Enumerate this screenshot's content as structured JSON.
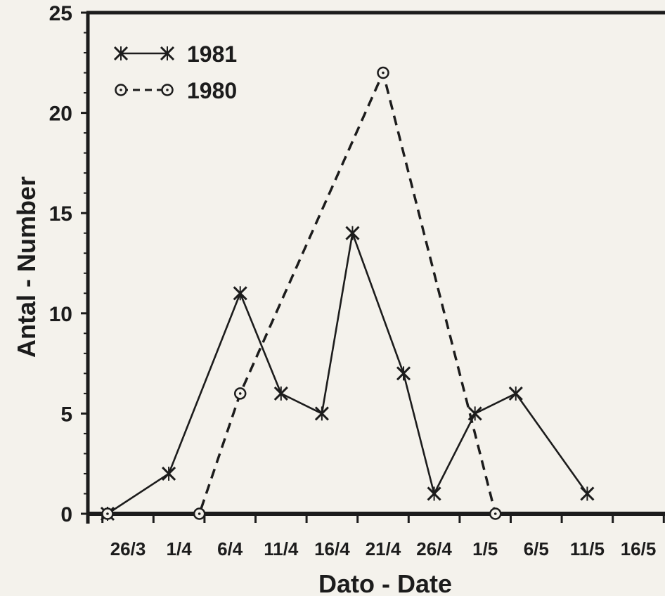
{
  "chart_data": {
    "type": "line",
    "xlabel": "Dato - Date",
    "ylabel": "Antal - Number",
    "x_tick_labels": [
      "26/3",
      "1/4",
      "6/4",
      "11/4",
      "16/4",
      "21/4",
      "26/4",
      "1/5",
      "6/5",
      "11/5",
      "16/5"
    ],
    "ylim": [
      0,
      25
    ],
    "y_ticks": [
      0,
      5,
      10,
      15,
      20,
      25
    ],
    "grid": false,
    "legend_position": "top-left",
    "series": [
      {
        "name": "1981",
        "marker": "x",
        "line_style": "solid",
        "points": [
          {
            "date": "24/3",
            "value": 0
          },
          {
            "date": "30/3",
            "value": 2
          },
          {
            "date": "6/4",
            "value": 11
          },
          {
            "date": "10/4",
            "value": 6
          },
          {
            "date": "14/4",
            "value": 5
          },
          {
            "date": "17/4",
            "value": 14
          },
          {
            "date": "22/4",
            "value": 7
          },
          {
            "date": "25/4",
            "value": 1
          },
          {
            "date": "29/4",
            "value": 5
          },
          {
            "date": "3/5",
            "value": 6
          },
          {
            "date": "10/5",
            "value": 1
          }
        ]
      },
      {
        "name": "1980",
        "marker": "o",
        "line_style": "dashed",
        "points": [
          {
            "date": "24/3",
            "value": 0
          },
          {
            "date": "2/4",
            "value": 0
          },
          {
            "date": "6/4",
            "value": 6
          },
          {
            "date": "20/4",
            "value": 22
          },
          {
            "date": "1/5",
            "value": 0
          }
        ]
      }
    ]
  }
}
